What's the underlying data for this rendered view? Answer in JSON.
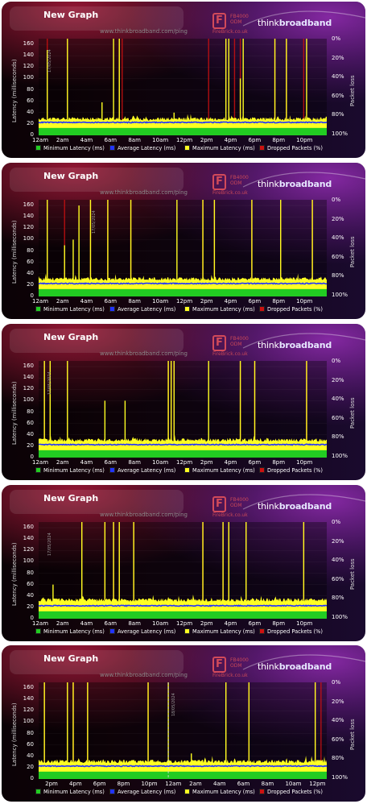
{
  "legend": {
    "min": "Minimum Latency (ms)",
    "avg": "Average Latency (ms)",
    "max": "Maximum Latency (ms)",
    "drop": "Dropped Packets (%)"
  },
  "colors": {
    "min": "#22cc22",
    "avg": "#2233ff",
    "max": "#ffff22",
    "drop": "#cc1111"
  },
  "brand": {
    "title": "New Graph",
    "url": "www.thinkbroadband.com/ping",
    "fb_line1": "FB4000",
    "fb_line2": "ODM",
    "fb_line3": "FireBrick.co.uk",
    "logo_a": "think",
    "logo_b": "broadband"
  },
  "axes": {
    "ylabel": "Latency (milliseconds)",
    "ylabel_right": "Packet loss",
    "yticks": [
      "160",
      "140",
      "120",
      "100",
      "80",
      "60",
      "40",
      "20",
      "0"
    ],
    "ptick": [
      "0%",
      "20%",
      "40%",
      "60%",
      "80%",
      "100%"
    ]
  },
  "chart_data": [
    {
      "type": "area",
      "ylim": [
        0,
        170
      ],
      "x_labels": [
        "12am",
        "2am",
        "4am",
        "6am",
        "8am",
        "10am",
        "12pm",
        "2pm",
        "4pm",
        "6pm",
        "8pm",
        "10pm"
      ],
      "date_label": "17/05/2024",
      "date_label_pos": 0.025,
      "min_level": 13,
      "avg_level": 22,
      "max_base": 26,
      "series": [
        {
          "name": "Minimum Latency (ms)",
          "values_ms": 13
        },
        {
          "name": "Average Latency (ms)",
          "values_ms": 22
        },
        {
          "name": "Maximum Latency (ms)",
          "spikes": [
            [
              0.03,
              150
            ],
            [
              0.1,
              170
            ],
            [
              0.22,
              58
            ],
            [
              0.26,
              170
            ],
            [
              0.28,
              170
            ],
            [
              0.47,
              40
            ],
            [
              0.65,
              170
            ],
            [
              0.66,
              170
            ],
            [
              0.7,
              100
            ],
            [
              0.71,
              170
            ],
            [
              0.82,
              170
            ],
            [
              0.86,
              170
            ],
            [
              0.93,
              170
            ]
          ]
        },
        {
          "name": "Dropped Packets (%)",
          "drops": [
            0.03,
            0.1,
            0.28,
            0.29,
            0.59,
            0.65,
            0.68,
            0.7,
            0.82,
            0.86,
            0.92
          ]
        }
      ],
      "seed": 11
    },
    {
      "type": "area",
      "ylim": [
        0,
        170
      ],
      "x_labels": [
        "12am",
        "2am",
        "4am",
        "6am",
        "8am",
        "10am",
        "12pm",
        "2pm",
        "4pm",
        "6pm",
        "8pm",
        "10pm"
      ],
      "date_label": "17/05/2024",
      "date_label_pos": 0.18,
      "min_level": 13,
      "avg_level": 22,
      "max_base": 28,
      "series": [
        {
          "name": "Minimum Latency (ms)",
          "values_ms": 13
        },
        {
          "name": "Average Latency (ms)",
          "values_ms": 22
        },
        {
          "name": "Maximum Latency (ms)",
          "spikes": [
            [
              0.03,
              170
            ],
            [
              0.09,
              90
            ],
            [
              0.12,
              100
            ],
            [
              0.14,
              160
            ],
            [
              0.18,
              170
            ],
            [
              0.24,
              170
            ],
            [
              0.32,
              170
            ],
            [
              0.48,
              170
            ],
            [
              0.57,
              170
            ],
            [
              0.61,
              170
            ],
            [
              0.74,
              170
            ],
            [
              0.84,
              170
            ],
            [
              0.95,
              170
            ]
          ]
        },
        {
          "name": "Dropped Packets (%)",
          "drops": [
            0.03,
            0.09,
            0.18,
            0.24,
            0.32,
            0.57,
            0.61,
            0.74,
            0.84,
            0.95
          ]
        }
      ],
      "seed": 23
    },
    {
      "type": "area",
      "ylim": [
        0,
        170
      ],
      "x_labels": [
        "12am",
        "2am",
        "4am",
        "6am",
        "8am",
        "10am",
        "12pm",
        "2pm",
        "4pm",
        "6pm",
        "8pm",
        "10pm"
      ],
      "date_label": "17/05/2024",
      "date_label_pos": 0.025,
      "min_level": 13,
      "avg_level": 22,
      "max_base": 28,
      "series": [
        {
          "name": "Minimum Latency (ms)",
          "values_ms": 13
        },
        {
          "name": "Average Latency (ms)",
          "values_ms": 22
        },
        {
          "name": "Maximum Latency (ms)",
          "spikes": [
            [
              0.02,
              170
            ],
            [
              0.04,
              170
            ],
            [
              0.1,
              170
            ],
            [
              0.23,
              100
            ],
            [
              0.3,
              100
            ],
            [
              0.45,
              170
            ],
            [
              0.46,
              170
            ],
            [
              0.47,
              170
            ],
            [
              0.59,
              170
            ],
            [
              0.7,
              170
            ],
            [
              0.75,
              170
            ],
            [
              0.93,
              170
            ]
          ]
        },
        {
          "name": "Dropped Packets (%)",
          "drops": [
            0.02,
            0.04,
            0.1,
            0.45,
            0.46,
            0.47,
            0.7,
            0.75,
            0.93
          ]
        }
      ],
      "seed": 37
    },
    {
      "type": "area",
      "ylim": [
        0,
        170
      ],
      "x_labels": [
        "12am",
        "2am",
        "4am",
        "6am",
        "8am",
        "10am",
        "12pm",
        "2pm",
        "4pm",
        "6pm",
        "8pm",
        "10pm"
      ],
      "date_label": "17/05/2024",
      "date_label_pos": 0.025,
      "min_level": 13,
      "avg_level": 22,
      "max_base": 30,
      "series": [
        {
          "name": "Minimum Latency (ms)",
          "values_ms": 13
        },
        {
          "name": "Average Latency (ms)",
          "values_ms": 22
        },
        {
          "name": "Maximum Latency (ms)",
          "spikes": [
            [
              0.05,
              60
            ],
            [
              0.15,
              170
            ],
            [
              0.23,
              170
            ],
            [
              0.26,
              170
            ],
            [
              0.28,
              170
            ],
            [
              0.33,
              170
            ],
            [
              0.57,
              170
            ],
            [
              0.64,
              170
            ],
            [
              0.66,
              170
            ],
            [
              0.72,
              170
            ],
            [
              0.92,
              170
            ]
          ]
        },
        {
          "name": "Dropped Packets (%)",
          "drops": [
            0.15,
            0.23,
            0.26,
            0.28,
            0.33,
            0.57,
            0.64,
            0.66,
            0.72,
            0.92
          ]
        }
      ],
      "seed": 51
    },
    {
      "type": "area",
      "ylim": [
        0,
        170
      ],
      "x_labels": [
        "2pm",
        "4pm",
        "6pm",
        "8pm",
        "10pm",
        "12am",
        "2am",
        "4am",
        "6am",
        "8am",
        "10am",
        "12pm"
      ],
      "x_offset": 0.045,
      "date_label": "18/05/2024",
      "date_label_pos": 0.455,
      "dashed_line": 0.45,
      "min_level": 13,
      "avg_level": 22,
      "max_base": 28,
      "series": [
        {
          "name": "Minimum Latency (ms)",
          "values_ms": 13
        },
        {
          "name": "Average Latency (ms)",
          "values_ms": 22
        },
        {
          "name": "Maximum Latency (ms)",
          "spikes": [
            [
              0.02,
              170
            ],
            [
              0.1,
              170
            ],
            [
              0.12,
              170
            ],
            [
              0.17,
              170
            ],
            [
              0.38,
              170
            ],
            [
              0.45,
              170
            ],
            [
              0.53,
              45
            ],
            [
              0.65,
              170
            ],
            [
              0.73,
              170
            ],
            [
              0.96,
              170
            ]
          ]
        },
        {
          "name": "Dropped Packets (%)",
          "drops": [
            0.02,
            0.1,
            0.12,
            0.17,
            0.38,
            0.65,
            0.73,
            0.96,
            0.98
          ]
        }
      ],
      "seed": 67
    }
  ]
}
